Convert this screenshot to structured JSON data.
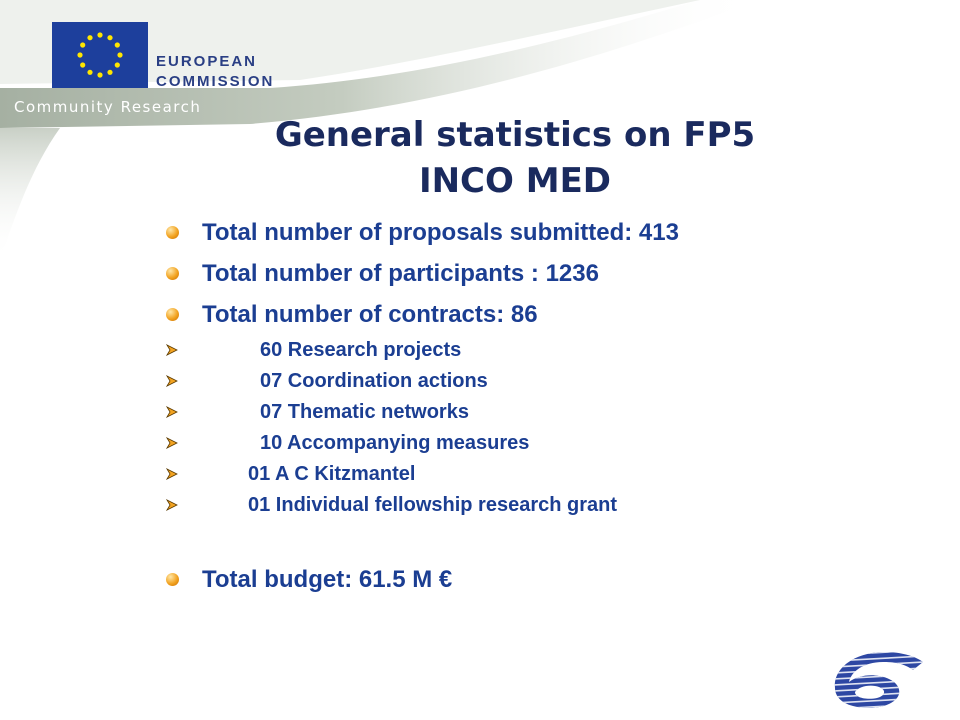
{
  "header": {
    "org_line1": "EUROPEAN",
    "org_line2": "COMMISSION",
    "community": "Community Research",
    "flag_icon": "eu-flag-icon"
  },
  "slide": {
    "title_line1": "General statistics on FP5",
    "title_line2": "INCO MED",
    "items": [
      {
        "level": "main",
        "text": "Total number of proposals submitted:  413"
      },
      {
        "level": "main",
        "text": "Total number of participants : 1236"
      },
      {
        "level": "main",
        "text": "Total number of contracts: 86"
      },
      {
        "level": "sub",
        "text": "60 Research projects"
      },
      {
        "level": "sub",
        "text": "07 Coordination actions"
      },
      {
        "level": "sub",
        "text": "07 Thematic networks"
      },
      {
        "level": "sub",
        "text": "10 Accompanying measures"
      },
      {
        "level": "sub",
        "text": "01 A C Kitzmantel"
      },
      {
        "level": "sub",
        "text": "01 Individual fellowship research grant"
      },
      {
        "level": "main",
        "text": "Total budget: 61.5 M €"
      }
    ]
  },
  "footer": {
    "logo_icon": "fp6-logo-icon"
  },
  "colors": {
    "text_blue": "#1b3e92",
    "title_navy": "#1a2a5e",
    "eu_blue": "#1d3f9c",
    "star_yellow": "#ffe600",
    "bullet_orange": "#f2a321"
  }
}
